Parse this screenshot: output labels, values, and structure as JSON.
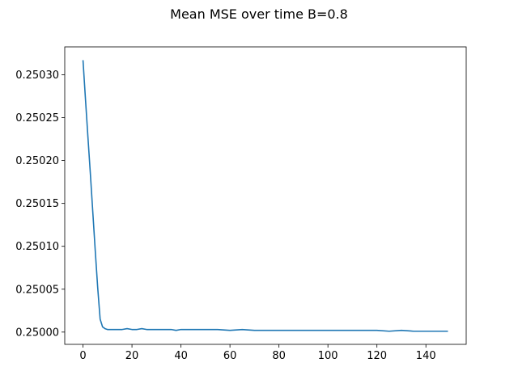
{
  "chart_data": {
    "type": "line",
    "title": "Mean MSE over time B=0.8",
    "xlabel": "",
    "ylabel": "",
    "xlim": [
      -7.45,
      156.45
    ],
    "ylim": [
      0.2499857,
      0.2503325
    ],
    "grid": false,
    "x_ticks": [
      0,
      20,
      40,
      60,
      80,
      100,
      120,
      140
    ],
    "y_ticks": [
      0.25,
      0.25005,
      0.2501,
      0.25015,
      0.2502,
      0.25025,
      0.2503
    ],
    "x_tick_labels": [
      "0",
      "20",
      "40",
      "60",
      "80",
      "100",
      "120",
      "140"
    ],
    "y_tick_labels": [
      "0.25000",
      "0.25005",
      "0.25010",
      "0.25015",
      "0.25020",
      "0.25025",
      "0.25030"
    ],
    "line_color": "#1f77b4",
    "series": [
      {
        "x": [
          0,
          1,
          2,
          3,
          4,
          5,
          6,
          7,
          8,
          9,
          10,
          12,
          14,
          16,
          18,
          20,
          22,
          24,
          26,
          28,
          30,
          32,
          34,
          36,
          38,
          40,
          42,
          44,
          46,
          48,
          50,
          55,
          60,
          65,
          70,
          75,
          80,
          85,
          90,
          95,
          100,
          105,
          110,
          115,
          120,
          125,
          130,
          135,
          140,
          145,
          149
        ],
        "y": [
          0.250317,
          0.250272,
          0.250228,
          0.250185,
          0.25014,
          0.250095,
          0.250052,
          0.250015,
          0.250006,
          0.250004,
          0.250003,
          0.250003,
          0.250003,
          0.250003,
          0.250004,
          0.250003,
          0.250003,
          0.250004,
          0.250003,
          0.250003,
          0.250003,
          0.250003,
          0.250003,
          0.250003,
          0.250002,
          0.250003,
          0.250003,
          0.250003,
          0.250003,
          0.250003,
          0.250003,
          0.250003,
          0.250002,
          0.250003,
          0.250002,
          0.250002,
          0.250002,
          0.250002,
          0.250002,
          0.250002,
          0.250002,
          0.250002,
          0.250002,
          0.250002,
          0.250002,
          0.250001,
          0.250002,
          0.250001,
          0.250001,
          0.250001,
          0.250001
        ]
      }
    ]
  }
}
